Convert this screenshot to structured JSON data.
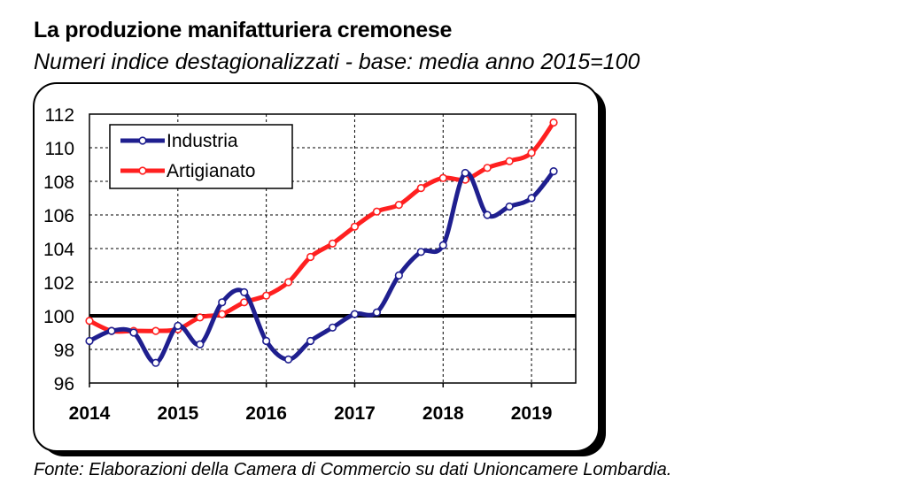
{
  "title": "La produzione manifatturiera cremonese",
  "subtitle": "Numeri indice destagionalizzati - base: media anno 2015=100",
  "source": "Fonte: Elaborazioni della Camera di Commercio su dati Unioncamere Lombardia.",
  "chart_data": {
    "type": "line",
    "x_ticks": [
      "2014",
      "2015",
      "2016",
      "2017",
      "2018",
      "2019"
    ],
    "y_ticks": [
      96,
      98,
      100,
      102,
      104,
      106,
      108,
      110,
      112
    ],
    "ylim": [
      96,
      112
    ],
    "xlim": [
      2014,
      2019.5
    ],
    "grid": true,
    "legend_position": "top-left",
    "reference_line": 100,
    "series": [
      {
        "name": "Industria",
        "color": "#1f1f8f",
        "x": [
          2014.0,
          2014.25,
          2014.5,
          2014.75,
          2015.0,
          2015.25,
          2015.5,
          2015.75,
          2016.0,
          2016.25,
          2016.5,
          2016.75,
          2017.0,
          2017.25,
          2017.5,
          2017.75,
          2018.0,
          2018.25,
          2018.5,
          2018.75,
          2019.0,
          2019.25
        ],
        "y": [
          98.5,
          99.1,
          99.0,
          97.2,
          99.4,
          98.3,
          100.8,
          101.4,
          98.5,
          97.4,
          98.5,
          99.3,
          100.1,
          100.2,
          102.4,
          103.8,
          104.2,
          108.5,
          106.0,
          106.5,
          107.0,
          108.6
        ]
      },
      {
        "name": "Artigianato",
        "color": "#ff2020",
        "x": [
          2014.0,
          2014.25,
          2014.5,
          2014.75,
          2015.0,
          2015.25,
          2015.5,
          2015.75,
          2016.0,
          2016.25,
          2016.5,
          2016.75,
          2017.0,
          2017.25,
          2017.5,
          2017.75,
          2018.0,
          2018.25,
          2018.5,
          2018.75,
          2019.0,
          2019.25
        ],
        "y": [
          99.7,
          99.1,
          99.1,
          99.1,
          99.2,
          99.9,
          100.1,
          100.8,
          101.2,
          102.0,
          103.5,
          104.3,
          105.3,
          106.2,
          106.6,
          107.6,
          108.2,
          108.1,
          108.8,
          109.2,
          109.7,
          111.5
        ]
      }
    ]
  }
}
